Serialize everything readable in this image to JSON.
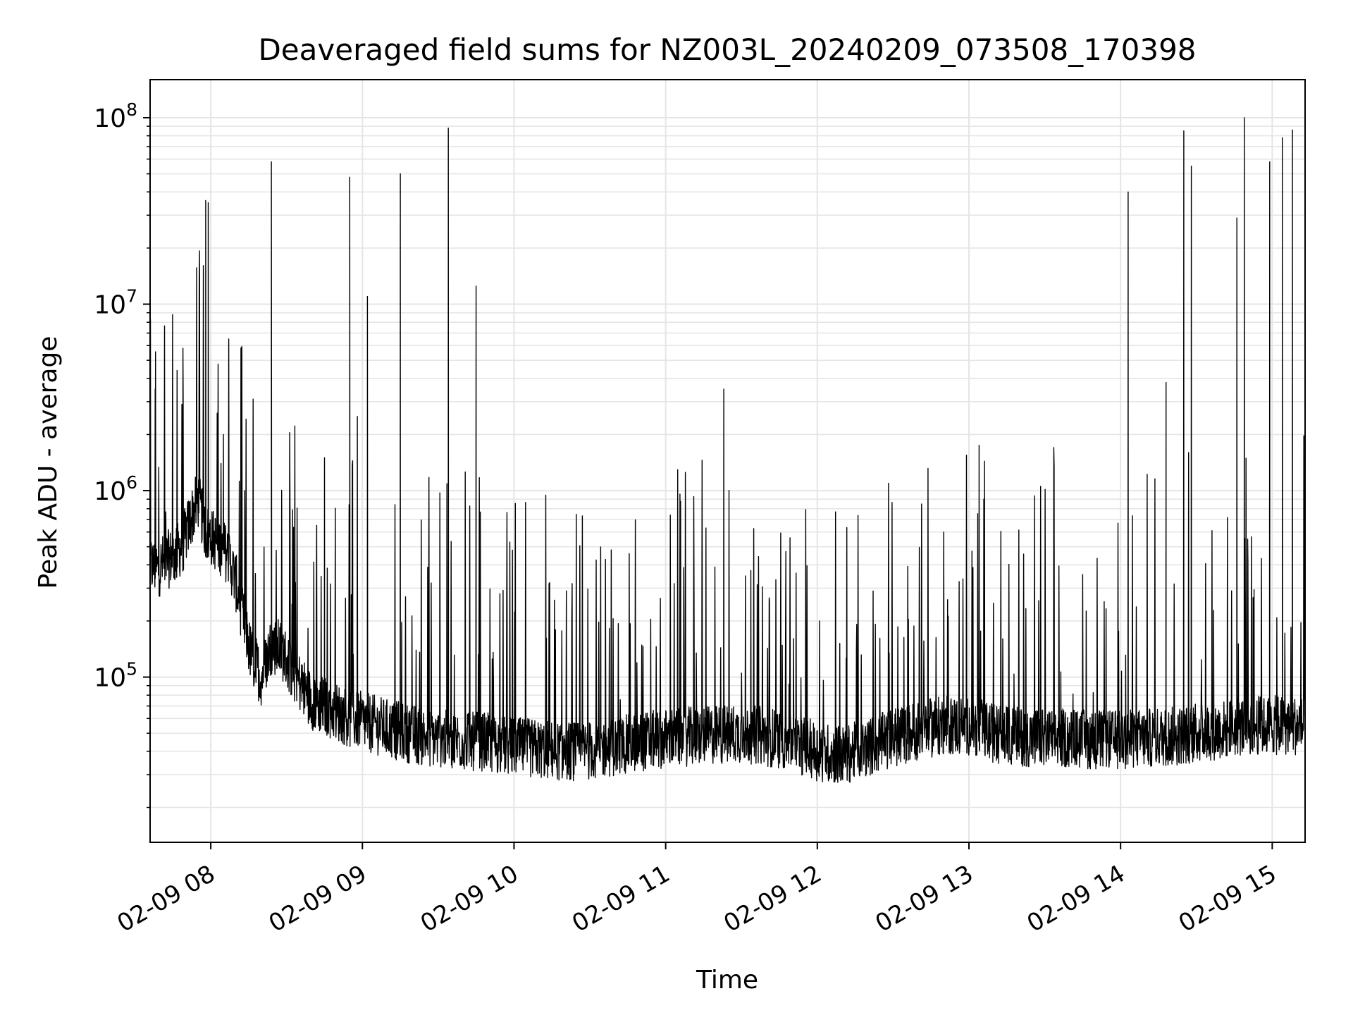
{
  "chart_data": {
    "type": "line",
    "title": "Deaveraged field sums for NZ003L_20240209_073508_170398",
    "xlabel": "Time",
    "ylabel": "Peak ADU - average",
    "xscale": "time",
    "yscale": "log",
    "xlim": [
      "2024-02-09 07:36",
      "2024-02-09 15:13"
    ],
    "ylim": [
      13000,
      160000000
    ],
    "grid": true,
    "line_color": "#000000",
    "grid_color": "#e5e5e5",
    "x_ticks": [
      "2024-02-09 08:00",
      "2024-02-09 09:00",
      "2024-02-09 10:00",
      "2024-02-09 11:00",
      "2024-02-09 12:00",
      "2024-02-09 13:00",
      "2024-02-09 14:00",
      "2024-02-09 15:00"
    ],
    "x_tick_labels": [
      "02-09 08",
      "02-09 09",
      "02-09 10",
      "02-09 11",
      "02-09 12",
      "02-09 13",
      "02-09 14",
      "02-09 15"
    ],
    "y_ticks": [
      100000,
      1000000,
      10000000,
      100000000
    ],
    "y_tick_labels": [
      {
        "base": "10",
        "exp": "5"
      },
      {
        "base": "10",
        "exp": "6"
      },
      {
        "base": "10",
        "exp": "7"
      },
      {
        "base": "10",
        "exp": "8"
      }
    ],
    "series": [
      {
        "x": [
          "2024-02-09 07:36",
          "2024-02-09 07:39",
          "2024-02-09 07:42",
          "2024-02-09 07:46",
          "2024-02-09 07:49",
          "2024-02-09 07:52",
          "2024-02-09 07:55",
          "2024-02-09 07:58",
          "2024-02-09 08:01",
          "2024-02-09 08:04",
          "2024-02-09 08:07",
          "2024-02-09 08:10",
          "2024-02-09 08:13",
          "2024-02-09 08:16",
          "2024-02-09 08:20",
          "2024-02-09 08:24",
          "2024-02-09 08:28",
          "2024-02-09 08:32",
          "2024-02-09 08:36",
          "2024-02-09 08:40",
          "2024-02-09 08:45",
          "2024-02-09 08:50",
          "2024-02-09 08:55",
          "2024-02-09 09:00",
          "2024-02-09 09:06",
          "2024-02-09 09:12",
          "2024-02-09 09:18",
          "2024-02-09 09:24",
          "2024-02-09 09:30",
          "2024-02-09 09:36",
          "2024-02-09 09:42",
          "2024-02-09 09:48",
          "2024-02-09 09:55",
          "2024-02-09 10:02",
          "2024-02-09 10:10",
          "2024-02-09 10:18",
          "2024-02-09 10:26",
          "2024-02-09 10:34",
          "2024-02-09 10:42",
          "2024-02-09 10:50",
          "2024-02-09 11:00",
          "2024-02-09 11:10",
          "2024-02-09 11:20",
          "2024-02-09 11:30",
          "2024-02-09 11:40",
          "2024-02-09 11:50",
          "2024-02-09 12:00",
          "2024-02-09 12:10",
          "2024-02-09 12:20",
          "2024-02-09 12:30",
          "2024-02-09 12:40",
          "2024-02-09 12:50",
          "2024-02-09 13:00",
          "2024-02-09 13:10",
          "2024-02-09 13:20",
          "2024-02-09 13:30",
          "2024-02-09 13:40",
          "2024-02-09 13:50",
          "2024-02-09 14:00",
          "2024-02-09 14:10",
          "2024-02-09 14:20",
          "2024-02-09 14:30",
          "2024-02-09 14:40",
          "2024-02-09 14:50",
          "2024-02-09 15:00",
          "2024-02-09 15:06",
          "2024-02-09 15:13"
        ],
        "y": [
          400000,
          380000,
          420000,
          450000,
          520000,
          700000,
          900000,
          600000,
          550000,
          500000,
          450000,
          320000,
          200000,
          130000,
          100000,
          150000,
          140000,
          110000,
          90000,
          75000,
          70000,
          65000,
          60000,
          58000,
          55000,
          52000,
          50000,
          48000,
          47000,
          46000,
          45000,
          45000,
          43000,
          42000,
          41000,
          40000,
          40000,
          41000,
          43000,
          45000,
          47000,
          48000,
          49000,
          50000,
          48000,
          45000,
          40000,
          38000,
          42000,
          47000,
          52000,
          55000,
          55000,
          50000,
          48000,
          47000,
          47000,
          46000,
          46000,
          47000,
          48000,
          50000,
          52000,
          55000,
          55000,
          55000,
          55000
        ]
      }
    ],
    "spikes": [
      {
        "x": "2024-02-09 07:38",
        "y": 3500000
      },
      {
        "x": "2024-02-09 07:49",
        "y": 5800000
      },
      {
        "x": "2024-02-09 07:58",
        "y": 36000000
      },
      {
        "x": "2024-02-09 07:59",
        "y": 35000000
      },
      {
        "x": "2024-02-09 08:05",
        "y": 2000000
      },
      {
        "x": "2024-02-09 08:24",
        "y": 58000000
      },
      {
        "x": "2024-02-09 08:45",
        "y": 1500000
      },
      {
        "x": "2024-02-09 08:55",
        "y": 48000000
      },
      {
        "x": "2024-02-09 08:58",
        "y": 2500000
      },
      {
        "x": "2024-02-09 09:02",
        "y": 11000000
      },
      {
        "x": "2024-02-09 09:15",
        "y": 50000000
      },
      {
        "x": "2024-02-09 09:34",
        "y": 88000000
      },
      {
        "x": "2024-02-09 09:45",
        "y": 12500000
      },
      {
        "x": "2024-02-09 11:23",
        "y": 3500000
      },
      {
        "x": "2024-02-09 13:04",
        "y": 1750000
      },
      {
        "x": "2024-02-09 14:03",
        "y": 40000000
      },
      {
        "x": "2024-02-09 14:18",
        "y": 3800000
      },
      {
        "x": "2024-02-09 14:25",
        "y": 85000000
      },
      {
        "x": "2024-02-09 14:28",
        "y": 55000000
      },
      {
        "x": "2024-02-09 14:46",
        "y": 29000000
      },
      {
        "x": "2024-02-09 14:49",
        "y": 100000000
      },
      {
        "x": "2024-02-09 14:59",
        "y": 58000000
      },
      {
        "x": "2024-02-09 15:04",
        "y": 78000000
      },
      {
        "x": "2024-02-09 15:08",
        "y": 86000000
      }
    ]
  }
}
